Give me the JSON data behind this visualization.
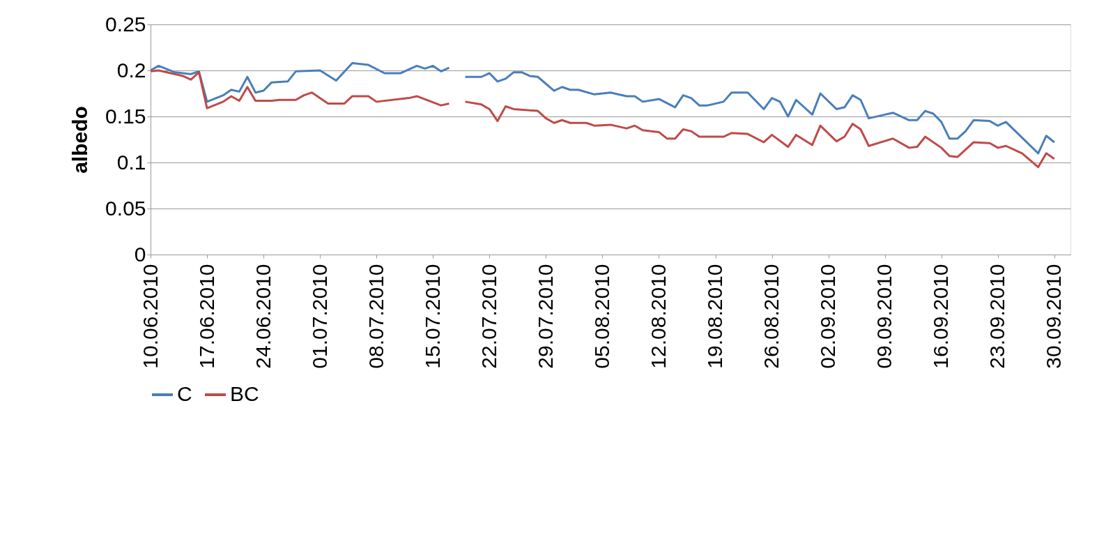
{
  "chart_data": {
    "type": "line",
    "ylabel": "albedo",
    "xlim": [
      "2010-06-10",
      "2010-10-02"
    ],
    "ylim": [
      0,
      0.25
    ],
    "xticks": [
      {
        "value": "2010-06-10",
        "label": "10.06.2010"
      },
      {
        "value": "2010-06-17",
        "label": "17.06.2010"
      },
      {
        "value": "2010-06-24",
        "label": "24.06.2010"
      },
      {
        "value": "2010-07-01",
        "label": "01.07.2010"
      },
      {
        "value": "2010-07-08",
        "label": "08.07.2010"
      },
      {
        "value": "2010-07-15",
        "label": "15.07.2010"
      },
      {
        "value": "2010-07-22",
        "label": "22.07.2010"
      },
      {
        "value": "2010-07-29",
        "label": "29.07.2010"
      },
      {
        "value": "2010-08-05",
        "label": "05.08.2010"
      },
      {
        "value": "2010-08-12",
        "label": "12.08.2010"
      },
      {
        "value": "2010-08-19",
        "label": "19.08.2010"
      },
      {
        "value": "2010-08-26",
        "label": "26.08.2010"
      },
      {
        "value": "2010-09-02",
        "label": "02.09.2010"
      },
      {
        "value": "2010-09-09",
        "label": "09.09.2010"
      },
      {
        "value": "2010-09-16",
        "label": "16.09.2010"
      },
      {
        "value": "2010-09-23",
        "label": "23.09.2010"
      },
      {
        "value": "2010-09-30",
        "label": "30.09.2010"
      }
    ],
    "yticks": [
      0,
      0.05,
      0.1,
      0.15,
      0.2,
      0.25
    ],
    "grid": "y",
    "legend": "bottom",
    "marker": "none",
    "line_style": "solid",
    "series": [
      {
        "name": "C",
        "color": "#4a7ebb",
        "x": [
          "2010-06-10",
          "2010-06-11",
          "2010-06-13",
          "2010-06-15",
          "2010-06-16",
          "2010-06-17",
          "2010-06-19",
          "2010-06-20",
          "2010-06-21",
          "2010-06-22",
          "2010-06-23",
          "2010-06-24",
          "2010-06-25",
          "2010-06-27",
          "2010-06-28",
          "2010-07-01",
          "2010-07-03",
          "2010-07-05",
          "2010-07-07",
          "2010-07-09",
          "2010-07-11",
          "2010-07-13",
          "2010-07-14",
          "2010-07-15",
          "2010-07-16",
          "2010-07-17",
          "2010-07-18",
          "2010-07-19",
          "2010-07-21",
          "2010-07-22",
          "2010-07-23",
          "2010-07-24",
          "2010-07-25",
          "2010-07-26",
          "2010-07-27",
          "2010-07-28",
          "2010-07-30",
          "2010-07-31",
          "2010-08-01",
          "2010-08-02",
          "2010-08-04",
          "2010-08-06",
          "2010-08-08",
          "2010-08-09",
          "2010-08-10",
          "2010-08-12",
          "2010-08-14",
          "2010-08-15",
          "2010-08-16",
          "2010-08-17",
          "2010-08-18",
          "2010-08-20",
          "2010-08-21",
          "2010-08-23",
          "2010-08-25",
          "2010-08-26",
          "2010-08-27",
          "2010-08-28",
          "2010-08-29",
          "2010-08-31",
          "2010-09-01",
          "2010-09-03",
          "2010-09-04",
          "2010-09-05",
          "2010-09-06",
          "2010-09-07",
          "2010-09-09",
          "2010-09-10",
          "2010-09-12",
          "2010-09-13",
          "2010-09-14",
          "2010-09-15",
          "2010-09-16",
          "2010-09-17",
          "2010-09-18",
          "2010-09-19",
          "2010-09-20",
          "2010-09-22",
          "2010-09-23",
          "2010-09-24",
          "2010-09-28",
          "2010-09-29",
          "2010-09-30"
        ],
        "values": [
          0.2,
          0.205,
          0.198,
          0.196,
          0.199,
          0.166,
          0.173,
          0.179,
          0.177,
          0.193,
          0.176,
          0.178,
          0.187,
          0.188,
          0.199,
          0.2,
          0.189,
          0.208,
          0.206,
          0.197,
          0.197,
          0.205,
          0.202,
          0.205,
          0.199,
          0.203,
          null,
          0.193,
          0.193,
          0.197,
          0.188,
          0.191,
          0.198,
          0.198,
          0.194,
          0.193,
          0.178,
          0.182,
          0.179,
          0.179,
          0.174,
          0.176,
          0.172,
          0.172,
          0.166,
          0.169,
          0.16,
          0.173,
          0.17,
          0.162,
          0.162,
          0.166,
          0.176,
          0.176,
          0.158,
          0.17,
          0.166,
          0.15,
          0.168,
          0.152,
          0.175,
          0.158,
          0.16,
          0.173,
          0.168,
          0.148,
          0.152,
          0.154,
          0.146,
          0.146,
          0.156,
          0.153,
          0.144,
          0.126,
          0.126,
          0.134,
          0.146,
          0.145,
          0.14,
          0.144,
          0.11,
          0.129,
          0.122
        ]
      },
      {
        "name": "BC",
        "color": "#be4b48",
        "x": [
          "2010-06-10",
          "2010-06-11",
          "2010-06-13",
          "2010-06-14",
          "2010-06-15",
          "2010-06-16",
          "2010-06-17",
          "2010-06-19",
          "2010-06-20",
          "2010-06-21",
          "2010-06-22",
          "2010-06-23",
          "2010-06-25",
          "2010-06-26",
          "2010-06-28",
          "2010-06-29",
          "2010-06-30",
          "2010-07-02",
          "2010-07-04",
          "2010-07-05",
          "2010-07-07",
          "2010-07-08",
          "2010-07-12",
          "2010-07-13",
          "2010-07-16",
          "2010-07-17",
          "2010-07-18",
          "2010-07-19",
          "2010-07-21",
          "2010-07-22",
          "2010-07-23",
          "2010-07-24",
          "2010-07-25",
          "2010-07-28",
          "2010-07-29",
          "2010-07-30",
          "2010-07-31",
          "2010-08-01",
          "2010-08-03",
          "2010-08-04",
          "2010-08-06",
          "2010-08-08",
          "2010-08-09",
          "2010-08-10",
          "2010-08-12",
          "2010-08-13",
          "2010-08-14",
          "2010-08-15",
          "2010-08-16",
          "2010-08-17",
          "2010-08-20",
          "2010-08-21",
          "2010-08-23",
          "2010-08-25",
          "2010-08-26",
          "2010-08-28",
          "2010-08-29",
          "2010-08-31",
          "2010-09-01",
          "2010-09-03",
          "2010-09-04",
          "2010-09-05",
          "2010-09-06",
          "2010-09-07",
          "2010-09-10",
          "2010-09-12",
          "2010-09-13",
          "2010-09-14",
          "2010-09-16",
          "2010-09-17",
          "2010-09-18",
          "2010-09-20",
          "2010-09-22",
          "2010-09-23",
          "2010-09-24",
          "2010-09-26",
          "2010-09-28",
          "2010-09-29",
          "2010-09-30"
        ],
        "values": [
          0.199,
          0.2,
          0.196,
          0.194,
          0.19,
          0.198,
          0.159,
          0.166,
          0.172,
          0.167,
          0.182,
          0.167,
          0.167,
          0.168,
          0.168,
          0.173,
          0.176,
          0.164,
          0.164,
          0.172,
          0.172,
          0.166,
          0.17,
          0.172,
          0.162,
          0.164,
          null,
          0.166,
          0.163,
          0.158,
          0.145,
          0.161,
          0.158,
          0.156,
          0.148,
          0.143,
          0.146,
          0.143,
          0.143,
          0.14,
          0.141,
          0.137,
          0.14,
          0.135,
          0.133,
          0.126,
          0.126,
          0.136,
          0.134,
          0.128,
          0.128,
          0.132,
          0.131,
          0.122,
          0.13,
          0.117,
          0.13,
          0.119,
          0.14,
          0.123,
          0.128,
          0.142,
          0.136,
          0.118,
          0.126,
          0.116,
          0.117,
          0.128,
          0.116,
          0.107,
          0.106,
          0.122,
          0.121,
          0.116,
          0.118,
          0.11,
          0.095,
          0.11,
          0.104
        ]
      }
    ]
  }
}
